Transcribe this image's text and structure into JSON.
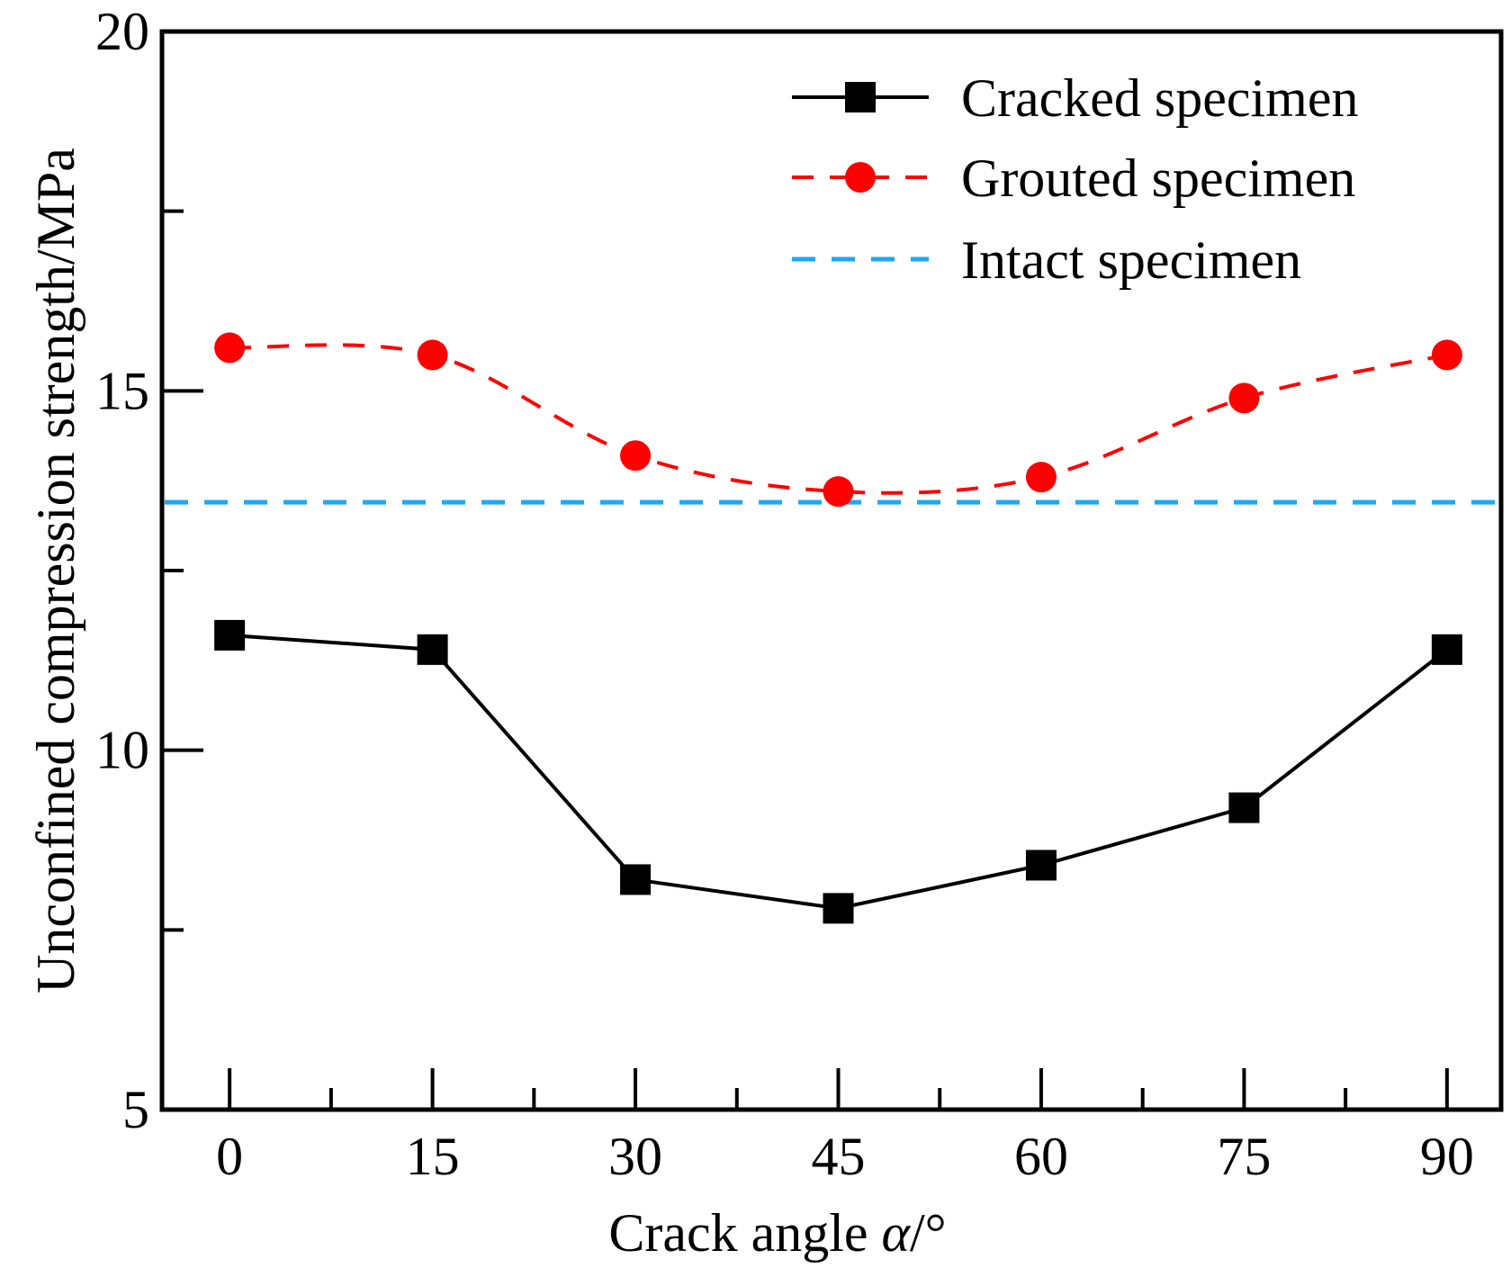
{
  "chart_data": {
    "type": "line",
    "title": "",
    "xlabel_text": "Crack angle ",
    "xlabel_symbol": "α",
    "xlabel_unit": "/°",
    "ylabel": "Unconfined compression strength/MPa",
    "x": [
      0,
      15,
      30,
      45,
      60,
      75,
      90
    ],
    "xlim": [
      -5,
      94
    ],
    "ylim": [
      5,
      20
    ],
    "xticks": [
      0,
      15,
      30,
      45,
      60,
      75,
      90
    ],
    "xticks_minor": [
      7.5,
      22.5,
      37.5,
      52.5,
      67.5,
      82.5
    ],
    "yticks": [
      5,
      10,
      15,
      20
    ],
    "yticks_minor": [
      7.5,
      12.5,
      17.5
    ],
    "xtick_labels": [
      "0",
      "15",
      "30",
      "45",
      "60",
      "75",
      "90"
    ],
    "ytick_labels": [
      "5",
      "10",
      "15",
      "20"
    ],
    "grid": false,
    "legend_position": "top-right",
    "series": [
      {
        "name": "Cracked specimen",
        "values": [
          11.6,
          11.4,
          8.2,
          7.8,
          8.4,
          9.2,
          11.4
        ],
        "color": "#000000",
        "line_style": "solid",
        "marker": "square"
      },
      {
        "name": "Grouted specimen",
        "values": [
          15.6,
          15.5,
          14.1,
          13.6,
          13.8,
          14.9,
          15.5
        ],
        "color": "#ff0000",
        "line_style": "dashed",
        "marker": "circle"
      },
      {
        "name": "Intact specimen",
        "constant": 13.45,
        "color": "#1ea7f5",
        "line_style": "dashed",
        "marker": "none"
      }
    ]
  }
}
